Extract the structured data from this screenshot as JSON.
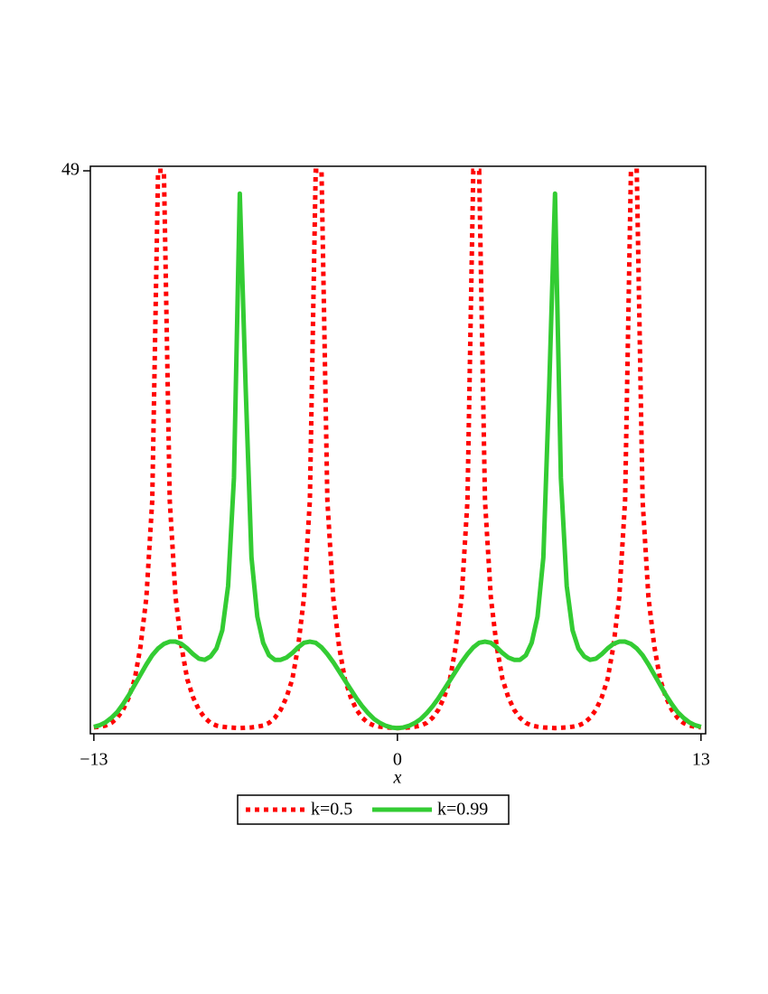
{
  "chart_data": {
    "type": "line",
    "x_label": "x",
    "x": [
      -13,
      -12.75,
      -12.5,
      -12.25,
      -12,
      -11.75,
      -11.5,
      -11.25,
      -11,
      -10.75,
      -10.5,
      -10.25,
      -10,
      -9.75,
      -9.5,
      -9.25,
      -9,
      -8.75,
      -8.5,
      -8.25,
      -8,
      -7.75,
      -7.5,
      -7.25,
      -7,
      -6.75,
      -6.5,
      -6.25,
      -6,
      -5.75,
      -5.5,
      -5.25,
      -5,
      -4.75,
      -4.5,
      -4.25,
      -4,
      -3.75,
      -3.5,
      -3.25,
      -3,
      -2.75,
      -2.5,
      -2.25,
      -2,
      -1.75,
      -1.5,
      -1.25,
      -1,
      -0.75,
      -0.5,
      -0.25,
      0,
      0.25,
      0.5,
      0.75,
      1,
      1.25,
      1.5,
      1.75,
      2,
      2.25,
      2.5,
      2.75,
      3,
      3.25,
      3.5,
      3.75,
      4,
      4.25,
      4.5,
      4.75,
      5,
      5.25,
      5.5,
      5.75,
      6,
      6.25,
      6.5,
      6.75,
      7,
      7.25,
      7.5,
      7.75,
      8,
      8.25,
      8.5,
      8.75,
      9,
      9.25,
      9.5,
      9.75,
      10,
      10.25,
      10.5,
      10.75,
      11,
      11.25,
      11.5,
      11.75,
      12,
      12.25,
      12.5,
      12.75,
      13
    ],
    "series": [
      {
        "name": "k=0.5",
        "color": "#ff0000",
        "style": "dotted",
        "values": [
          0.06,
          0.12,
          0.22,
          0.45,
          0.9,
          1.6,
          2.7,
          4.3,
          7.2,
          11.5,
          20,
          49,
          49,
          20,
          11.5,
          7.2,
          4.3,
          2.7,
          1.6,
          0.9,
          0.45,
          0.22,
          0.12,
          0.06,
          0.03,
          0,
          0.03,
          0.06,
          0.12,
          0.22,
          0.45,
          0.9,
          1.6,
          2.7,
          4.3,
          7.2,
          11.5,
          20,
          49,
          49,
          20,
          11.5,
          7.2,
          4.3,
          2.7,
          1.6,
          0.9,
          0.45,
          0.22,
          0.12,
          0.06,
          0.03,
          0,
          0.03,
          0.06,
          0.12,
          0.22,
          0.45,
          0.9,
          1.6,
          2.7,
          4.3,
          7.2,
          11.5,
          20,
          49,
          49,
          20,
          11.5,
          7.2,
          4.3,
          2.7,
          1.6,
          0.9,
          0.45,
          0.22,
          0.12,
          0.06,
          0.03,
          0,
          0.03,
          0.06,
          0.12,
          0.22,
          0.45,
          0.9,
          1.6,
          2.7,
          4.3,
          7.2,
          11.5,
          20,
          49,
          49,
          20,
          11.5,
          7.2,
          4.3,
          2.7,
          1.6,
          0.9,
          0.45,
          0.22,
          0.12,
          0.06
        ]
      },
      {
        "name": "k=0.99",
        "color": "#33cc33",
        "style": "solid",
        "values": [
          0.1,
          0.25,
          0.5,
          0.9,
          1.4,
          2.1,
          2.9,
          3.8,
          4.7,
          5.6,
          6.4,
          7.0,
          7.4,
          7.6,
          7.6,
          7.4,
          7.0,
          6.5,
          6.1,
          6.0,
          6.3,
          7.0,
          8.6,
          12.5,
          22,
          47,
          30,
          15,
          9.8,
          7.5,
          6.4,
          6.0,
          6.0,
          6.2,
          6.6,
          7.1,
          7.5,
          7.6,
          7.5,
          7.1,
          6.5,
          5.8,
          5.0,
          4.2,
          3.4,
          2.6,
          1.9,
          1.3,
          0.8,
          0.45,
          0.2,
          0.05,
          0,
          0.05,
          0.2,
          0.45,
          0.8,
          1.3,
          1.9,
          2.6,
          3.4,
          4.2,
          5.0,
          5.8,
          6.5,
          7.1,
          7.5,
          7.6,
          7.5,
          7.1,
          6.6,
          6.2,
          6.0,
          6.0,
          6.4,
          7.5,
          9.8,
          15,
          30,
          47,
          22,
          12.5,
          8.6,
          7.0,
          6.3,
          6.0,
          6.1,
          6.5,
          7.0,
          7.4,
          7.6,
          7.6,
          7.4,
          7.0,
          6.4,
          5.6,
          4.7,
          3.8,
          2.9,
          2.1,
          1.4,
          0.9,
          0.5,
          0.25,
          0.1
        ]
      }
    ],
    "xlim": [
      -13.15,
      13.2
    ],
    "ylim": [
      -0.5,
      49.4
    ],
    "xticks": [
      {
        "value": -13,
        "label": "−13"
      },
      0,
      13
    ],
    "yticks": [
      49
    ],
    "legend": "bottom"
  }
}
